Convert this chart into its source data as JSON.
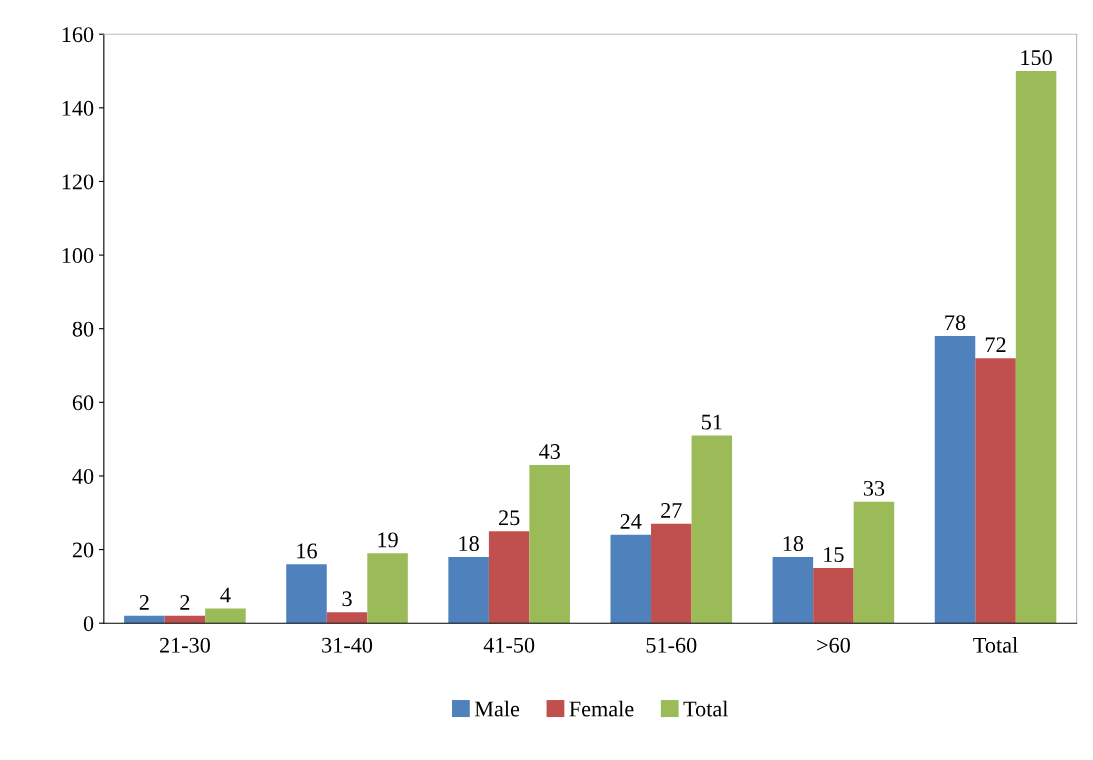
{
  "chart_data": {
    "type": "bar",
    "categories": [
      "21-30",
      "31-40",
      "41-50",
      "51-60",
      ">60",
      "Total"
    ],
    "series": [
      {
        "name": "Male",
        "color": "#4f81bd",
        "values": [
          2,
          16,
          18,
          24,
          18,
          78
        ]
      },
      {
        "name": "Female",
        "color": "#c0504d",
        "values": [
          2,
          3,
          25,
          27,
          15,
          72
        ]
      },
      {
        "name": "Total",
        "color": "#9bbb59",
        "values": [
          4,
          19,
          43,
          51,
          33,
          150
        ]
      }
    ],
    "ylim": [
      0,
      160
    ],
    "yticks": [
      0,
      20,
      40,
      60,
      80,
      100,
      120,
      140,
      160
    ],
    "data_labels": true,
    "legend": "bottom",
    "grid": false
  }
}
